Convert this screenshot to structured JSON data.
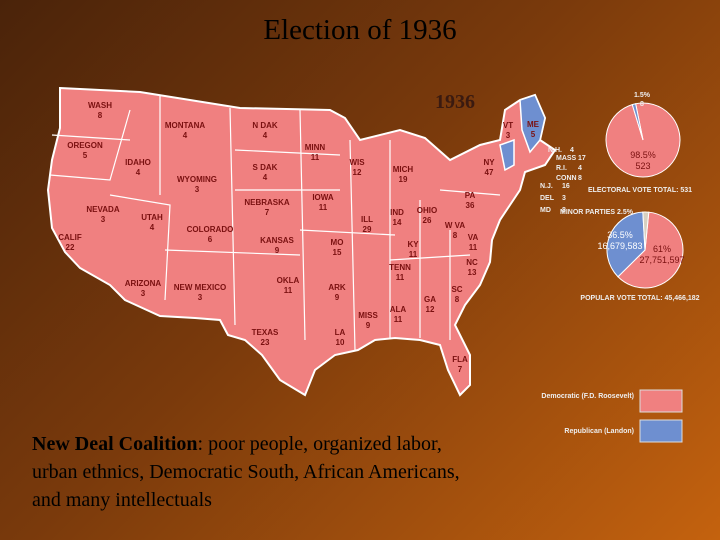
{
  "title": "Election of 1936",
  "map": {
    "year": "1936",
    "states": [
      {
        "name": "WASH",
        "votes": 8
      },
      {
        "name": "OREGON",
        "votes": 5
      },
      {
        "name": "CALIF",
        "votes": 22
      },
      {
        "name": "IDAHO",
        "votes": 4
      },
      {
        "name": "NEVADA",
        "votes": 3
      },
      {
        "name": "MONTANA",
        "votes": 4
      },
      {
        "name": "WYOMING",
        "votes": 3
      },
      {
        "name": "UTAH",
        "votes": 4
      },
      {
        "name": "COLORADO",
        "votes": 6
      },
      {
        "name": "ARIZONA",
        "votes": 3
      },
      {
        "name": "NEW MEXICO",
        "votes": 3
      },
      {
        "name": "N DAK",
        "votes": 4
      },
      {
        "name": "S DAK",
        "votes": 4
      },
      {
        "name": "NEBRASKA",
        "votes": 7
      },
      {
        "name": "KANSAS",
        "votes": 9
      },
      {
        "name": "OKLA",
        "votes": 11
      },
      {
        "name": "TEXAS",
        "votes": 23
      },
      {
        "name": "MINN",
        "votes": 11
      },
      {
        "name": "IOWA",
        "votes": 11
      },
      {
        "name": "MO",
        "votes": 15
      },
      {
        "name": "ARK",
        "votes": 9
      },
      {
        "name": "LA",
        "votes": 10
      },
      {
        "name": "WIS",
        "votes": 12
      },
      {
        "name": "ILL",
        "votes": 29
      },
      {
        "name": "MISS",
        "votes": 9
      },
      {
        "name": "MICH",
        "votes": 19
      },
      {
        "name": "IND",
        "votes": 14
      },
      {
        "name": "KY",
        "votes": 11
      },
      {
        "name": "TENN",
        "votes": 11
      },
      {
        "name": "ALA",
        "votes": 11
      },
      {
        "name": "OHIO",
        "votes": 26
      },
      {
        "name": "GA",
        "votes": 12
      },
      {
        "name": "FLA",
        "votes": 7
      },
      {
        "name": "W VA",
        "votes": 8
      },
      {
        "name": "VA",
        "votes": 11
      },
      {
        "name": "NC",
        "votes": 13
      },
      {
        "name": "SC",
        "votes": 8
      },
      {
        "name": "PA",
        "votes": 36
      },
      {
        "name": "NY",
        "votes": 47
      },
      {
        "name": "VT",
        "votes": 3
      },
      {
        "name": "ME",
        "votes": 5
      },
      {
        "name": "N.H.",
        "votes": 4
      },
      {
        "name": "MASS",
        "votes": 17
      },
      {
        "name": "R.I.",
        "votes": 4
      },
      {
        "name": "CONN",
        "votes": 8
      },
      {
        "name": "N.J.",
        "votes": 16
      },
      {
        "name": "DEL",
        "votes": 3
      },
      {
        "name": "MD",
        "votes": 8
      }
    ]
  },
  "electoral_pie": {
    "values": [
      98.5,
      1.5
    ],
    "value_labels": [
      "98.5%",
      "1.5%"
    ],
    "counts": [
      "523",
      "8"
    ],
    "caption": "ELECTORAL VOTE TOTAL: 531"
  },
  "popular_pie": {
    "values": [
      61,
      36.5,
      2.5
    ],
    "value_labels": [
      "61%",
      "36.5%",
      "MINOR PARTIES 2.5%"
    ],
    "counts": [
      "27,751,597",
      "16,679,583"
    ],
    "caption": "POPULAR VOTE TOTAL: 45,466,182"
  },
  "legend": {
    "democratic": "Democratic (F.D. Roosevelt)",
    "republican": "Republican (Landon)"
  },
  "caption": {
    "bold": "New Deal Coalition",
    "text": ": poor people, organized labor, urban ethnics, Democratic South, African Americans, and many intellectuals"
  }
}
